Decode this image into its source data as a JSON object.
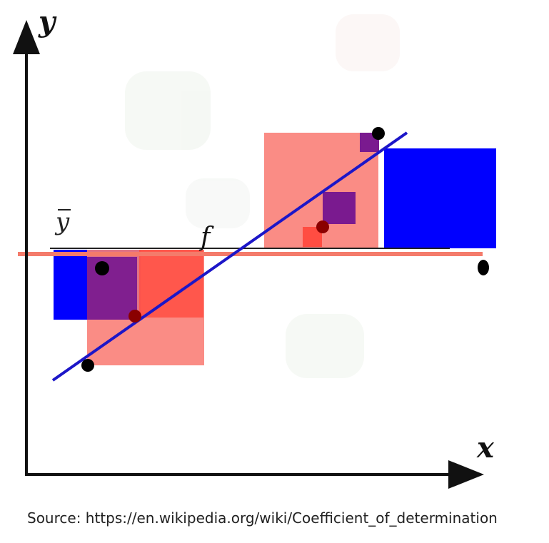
{
  "labels": {
    "x_axis": "x",
    "y_axis": "y",
    "mean": "y",
    "model": "f"
  },
  "source": "Source: https://en.wikipedia.org/wiki/Coefficient_of_determination",
  "colors": {
    "axis": "#111111",
    "mean_line": "#f47b6b",
    "regression_line": "#1c16c8",
    "total_square": "#0000ff",
    "residual_square": "#fa7f78",
    "overlap_square": "#7a1a8f",
    "point": "#000000"
  }
}
